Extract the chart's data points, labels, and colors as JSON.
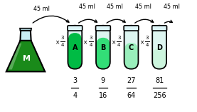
{
  "flask_color_dark": "#1a8a1a",
  "flask_color_liquid": "#1a8a1a",
  "flask_neck_color": "#c8eef5",
  "tube_colors": [
    "#00bb44",
    "#33dd77",
    "#99eebb",
    "#ccf5dd"
  ],
  "tube_labels": [
    "A",
    "B",
    "C",
    "D"
  ],
  "flask_label": "M",
  "fractions_num": [
    "3",
    "9",
    "27",
    "81"
  ],
  "fractions_den": [
    "4",
    "16",
    "64",
    "256"
  ],
  "ml_text": "45 ml"
}
